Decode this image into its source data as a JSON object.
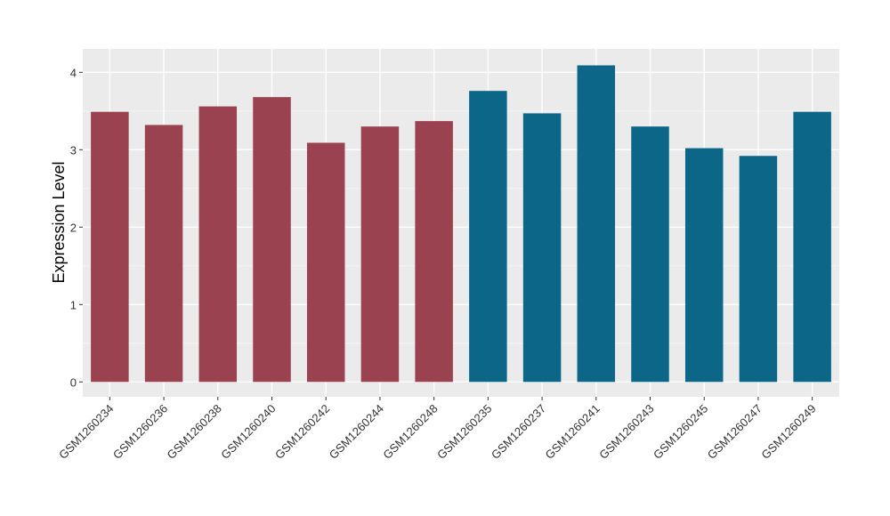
{
  "chart_data": {
    "type": "bar",
    "title": "",
    "xlabel": "",
    "ylabel": "Expression Level",
    "ylim": [
      0,
      4.2
    ],
    "yticks": [
      "0",
      "1",
      "2",
      "3",
      "4"
    ],
    "grid": true,
    "categories": [
      "GSM1260234",
      "GSM1260236",
      "GSM1260238",
      "GSM1260240",
      "GSM1260242",
      "GSM1260244",
      "GSM1260248",
      "GSM1260235",
      "GSM1260237",
      "GSM1260241",
      "GSM1260243",
      "GSM1260245",
      "GSM1260247",
      "GSM1260249"
    ],
    "values": [
      3.49,
      3.32,
      3.56,
      3.68,
      3.09,
      3.3,
      3.37,
      3.76,
      3.47,
      4.09,
      3.3,
      3.02,
      2.92,
      3.49
    ],
    "groups": [
      0,
      0,
      0,
      0,
      0,
      0,
      0,
      1,
      1,
      1,
      1,
      1,
      1,
      1
    ],
    "colors": [
      "#9b4251",
      "#0c6687"
    ]
  }
}
